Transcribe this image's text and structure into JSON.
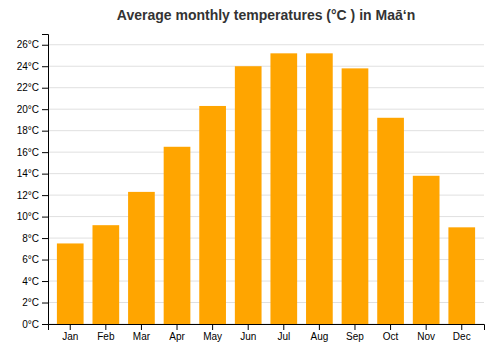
{
  "chart_data": {
    "type": "bar",
    "title": "Average monthly temperatures (°C ) in Maāʻn",
    "categories": [
      "Jan",
      "Feb",
      "Mar",
      "Apr",
      "May",
      "Jun",
      "Jul",
      "Aug",
      "Sep",
      "Oct",
      "Nov",
      "Dec"
    ],
    "values": [
      7.5,
      9.2,
      12.3,
      16.5,
      20.3,
      24.0,
      25.2,
      25.2,
      23.8,
      19.2,
      13.8,
      9.0
    ],
    "color": "#FFA500",
    "ylim": [
      0,
      27
    ],
    "yticks": [
      {
        "value": 0,
        "label": "0°C"
      },
      {
        "value": 2,
        "label": "2°C"
      },
      {
        "value": 4,
        "label": "4°C"
      },
      {
        "value": 6,
        "label": "6°C"
      },
      {
        "value": 8,
        "label": "8°C"
      },
      {
        "value": 10,
        "label": "10°C"
      },
      {
        "value": 12,
        "label": "12°C"
      },
      {
        "value": 14,
        "label": "14°C"
      },
      {
        "value": 16,
        "label": "16°C"
      },
      {
        "value": 18,
        "label": "18°C"
      },
      {
        "value": 20,
        "label": "20°C"
      },
      {
        "value": 22,
        "label": "22°C"
      },
      {
        "value": 24,
        "label": "24°C"
      },
      {
        "value": 26,
        "label": "26°C"
      }
    ],
    "grid": true
  }
}
